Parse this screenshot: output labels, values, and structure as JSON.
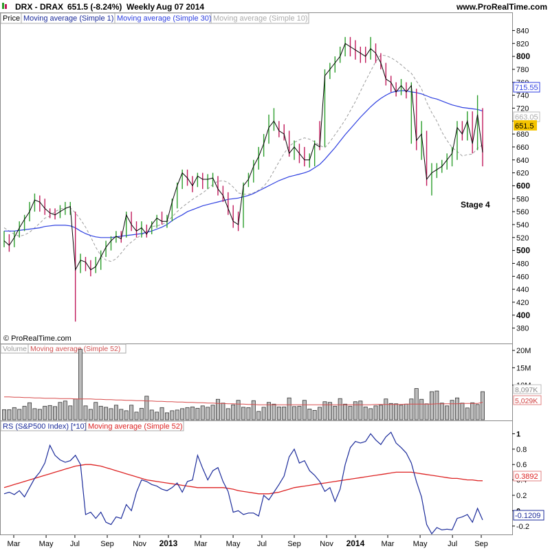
{
  "header": {
    "symbol": "DRX - DRAX",
    "price_change": "651.5 (-8.24%)",
    "period": "Weekly",
    "date": "Aug 07 2014",
    "site": "www.ProRealTime.com"
  },
  "price_panel": {
    "legend": {
      "price": "Price",
      "ma1": "Moving average (Simple 1)",
      "ma30": "Moving average (Simple 30)",
      "ma10": "Moving average (Simple 10)"
    },
    "copyright": "© ProRealTime.com",
    "annotation": "Stage 4",
    "value_tags": {
      "ma30": "715.55",
      "ma10": "663.05",
      "last": "651.5"
    },
    "colors": {
      "up": "#2a9d2a",
      "down": "#c0185a",
      "ma1": "#000000",
      "ma30": "#2c3ee0",
      "ma10": "#9a9a9a",
      "last_tag": "#f5c400"
    }
  },
  "volume_panel": {
    "legend": {
      "volume": "Volume",
      "ma": "Moving average (Simple 52)"
    },
    "ticks": [
      "20M",
      "15M",
      "10M"
    ],
    "value_tags": {
      "volume": "8,097K",
      "ma": "5,029K"
    }
  },
  "rs_panel": {
    "legend": {
      "rs": "RS (S&P500 Index) [*10]",
      "ma": "Moving average (Simple 52)"
    },
    "ticks": [
      "1",
      "0.8",
      "0.6",
      "0.4",
      "0.2",
      "0",
      "-0.2"
    ],
    "value_tags": {
      "ma": "0.3892",
      "rs": "-0.1209"
    }
  },
  "x_axis": {
    "labels": [
      "Mar",
      "May",
      "Jul",
      "Sep",
      "Nov",
      "2013",
      "Mar",
      "May",
      "Jul",
      "Sep",
      "Nov",
      "2014",
      "Mar",
      "May",
      "Jul",
      "Sep"
    ]
  },
  "chart_data": [
    {
      "type": "ohlc",
      "title": "DRX - DRAX",
      "period": "Weekly",
      "ylim": [
        370,
        850
      ],
      "yticks": [
        380,
        400,
        420,
        440,
        460,
        480,
        500,
        520,
        540,
        560,
        580,
        600,
        620,
        640,
        660,
        680,
        700,
        720,
        740,
        760,
        780,
        800,
        820,
        840
      ],
      "close": [
        515,
        508,
        520,
        535,
        548,
        560,
        578,
        575,
        565,
        558,
        555,
        560,
        565,
        568,
        470,
        485,
        482,
        470,
        475,
        490,
        505,
        515,
        522,
        518,
        555,
        540,
        530,
        535,
        525,
        540,
        550,
        545,
        545,
        575,
        600,
        620,
        612,
        600,
        615,
        610,
        610,
        612,
        595,
        585,
        565,
        545,
        540,
        600,
        610,
        630,
        645,
        665,
        690,
        700,
        685,
        680,
        650,
        660,
        650,
        640,
        640,
        665,
        660,
        770,
        780,
        790,
        800,
        820,
        815,
        810,
        805,
        800,
        812,
        805,
        790,
        765,
        760,
        745,
        755,
        745,
        755,
        670,
        680,
        610,
        620,
        625,
        630,
        640,
        650,
        690,
        680,
        700,
        665,
        710,
        651.5
      ],
      "high": [
        530,
        525,
        530,
        545,
        555,
        575,
        588,
        585,
        580,
        565,
        565,
        570,
        575,
        575,
        560,
        495,
        490,
        485,
        490,
        500,
        515,
        522,
        530,
        530,
        560,
        560,
        545,
        545,
        540,
        545,
        555,
        560,
        555,
        580,
        605,
        625,
        625,
        615,
        620,
        620,
        618,
        620,
        615,
        600,
        590,
        570,
        560,
        605,
        620,
        640,
        660,
        680,
        710,
        720,
        700,
        695,
        685,
        670,
        665,
        660,
        650,
        670,
        700,
        780,
        790,
        800,
        815,
        830,
        830,
        825,
        815,
        815,
        830,
        820,
        805,
        790,
        770,
        760,
        765,
        760,
        760,
        750,
        700,
        685,
        635,
        635,
        640,
        650,
        660,
        700,
        700,
        715,
        715,
        740,
        720
      ],
      "low": [
        505,
        498,
        505,
        520,
        530,
        545,
        560,
        560,
        555,
        550,
        548,
        550,
        555,
        555,
        390,
        465,
        468,
        460,
        465,
        470,
        490,
        500,
        512,
        512,
        520,
        530,
        520,
        520,
        520,
        525,
        535,
        540,
        535,
        545,
        565,
        595,
        600,
        590,
        598,
        595,
        595,
        598,
        585,
        575,
        555,
        535,
        530,
        535,
        598,
        605,
        625,
        645,
        665,
        685,
        675,
        670,
        645,
        640,
        635,
        630,
        628,
        630,
        655,
        660,
        765,
        775,
        790,
        800,
        800,
        795,
        790,
        790,
        795,
        790,
        780,
        755,
        745,
        738,
        740,
        735,
        665,
        655,
        640,
        600,
        585,
        612,
        620,
        625,
        630,
        640,
        670,
        670,
        650,
        655,
        630
      ],
      "ma10": [
        535,
        530,
        525,
        522,
        524,
        528,
        535,
        542,
        550,
        553,
        560,
        564,
        566,
        566,
        558,
        548,
        536,
        521,
        505,
        492,
        485,
        483,
        487,
        496,
        506,
        513,
        519,
        524,
        530,
        537,
        538,
        540,
        544,
        552,
        560,
        567,
        573,
        579,
        584,
        589,
        595,
        602,
        607,
        608,
        605,
        598,
        589,
        587,
        587,
        589,
        593,
        599,
        609,
        623,
        637,
        650,
        661,
        667,
        671,
        674,
        672,
        668,
        662,
        659,
        668,
        679,
        690,
        702,
        716,
        730,
        746,
        762,
        777,
        792,
        802,
        801,
        798,
        793,
        787,
        780,
        774,
        762,
        750,
        729,
        713,
        700,
        683,
        670,
        659,
        653,
        646,
        648,
        649,
        658,
        663.05
      ],
      "ma30": [
        530,
        530,
        530,
        531,
        532,
        533,
        534,
        535,
        537,
        538,
        539,
        539,
        539,
        538,
        535,
        530,
        526,
        523,
        521,
        520,
        520,
        520,
        521,
        522,
        523,
        524,
        525,
        526,
        528,
        530,
        533,
        536,
        540,
        546,
        551,
        555,
        560,
        563,
        566,
        569,
        571,
        573,
        575,
        577,
        579,
        580,
        581,
        583,
        585,
        588,
        592,
        596,
        600,
        604,
        608,
        611,
        614,
        616,
        618,
        620,
        623,
        628,
        633,
        641,
        650,
        659,
        669,
        679,
        688,
        697,
        706,
        714,
        722,
        729,
        735,
        740,
        744,
        746,
        747,
        747,
        745,
        744,
        742,
        739,
        736,
        734,
        731,
        728,
        725,
        723,
        721,
        720,
        719,
        718,
        715.55
      ]
    },
    {
      "type": "bar",
      "title": "Volume",
      "unit": "M",
      "ylim": [
        0,
        22
      ],
      "values": [
        2.9,
        2.9,
        3.5,
        3.0,
        3.9,
        4.9,
        3.2,
        3.0,
        3.9,
        4.1,
        3.8,
        5.0,
        5.4,
        4.0,
        6.0,
        20.3,
        4.0,
        3.0,
        5.0,
        3.9,
        3.6,
        3.2,
        4.2,
        3.0,
        2.6,
        4.2,
        2.2,
        3.3,
        6.8,
        2.8,
        2.2,
        3.5,
        2.0,
        2.6,
        2.8,
        3.2,
        3.5,
        3.7,
        3.3,
        4.0,
        3.6,
        4.2,
        5.9,
        4.8,
        3.2,
        4.3,
        5.6,
        3.6,
        3.5,
        5.5,
        2.4,
        3.6,
        5.0,
        4.5,
        3.7,
        3.7,
        6.3,
        3.8,
        3.9,
        5.6,
        3.1,
        2.7,
        3.6,
        5.2,
        5.0,
        3.9,
        6.1,
        4.5,
        3.9,
        5.2,
        5.4,
        3.7,
        3.2,
        4.0,
        4.2,
        6.0,
        4.7,
        4.6,
        4.2,
        4.5,
        6.0,
        9.0,
        5.9,
        4.6,
        8.1,
        8.3,
        4.8,
        4.0,
        5.6,
        6.3,
        4.8,
        3.4,
        4.9,
        4.4,
        8.1
      ],
      "ma": [
        6.6,
        6.6,
        6.5,
        6.5,
        6.4,
        6.4,
        6.3,
        6.3,
        6.2,
        6.2,
        6.2,
        6.1,
        6.1,
        6.1,
        6.0,
        6.0,
        6.0,
        6.0,
        5.9,
        5.9,
        5.8,
        5.8,
        5.7,
        5.7,
        5.6,
        5.6,
        5.5,
        5.5,
        5.4,
        5.4,
        5.3,
        5.3,
        5.2,
        5.2,
        5.1,
        5.1,
        5.0,
        5.0,
        4.9,
        4.9,
        4.8,
        4.8,
        4.7,
        4.7,
        4.6,
        4.6,
        4.5,
        4.5,
        4.4,
        4.4,
        4.3,
        4.3,
        4.3,
        4.3,
        4.3,
        4.3,
        4.3,
        4.3,
        4.3,
        4.3,
        4.3,
        4.3,
        4.3,
        4.3,
        4.3,
        4.3,
        4.3,
        4.3,
        4.3,
        4.3,
        4.3,
        4.3,
        4.3,
        4.4,
        4.4,
        4.4,
        4.4,
        4.4,
        4.4,
        4.5,
        4.5,
        4.5,
        4.5,
        4.5,
        4.5,
        4.6,
        4.6,
        4.6,
        4.6,
        4.6,
        4.7,
        4.7,
        4.7,
        4.7,
        5.029
      ]
    },
    {
      "type": "line",
      "title": "RS (S&P500 Index) [*10]",
      "ylim": [
        -0.3,
        1.12
      ],
      "values": [
        0.22,
        0.24,
        0.21,
        0.26,
        0.18,
        0.3,
        0.42,
        0.5,
        0.62,
        0.85,
        0.72,
        0.66,
        0.63,
        0.65,
        0.72,
        0.6,
        -0.05,
        -0.02,
        -0.1,
        -0.02,
        -0.15,
        -0.18,
        -0.08,
        -0.1,
        0.08,
        0.0,
        0.24,
        0.4,
        0.38,
        0.34,
        0.32,
        0.28,
        0.26,
        0.3,
        0.36,
        0.24,
        0.38,
        0.4,
        0.72,
        0.55,
        0.4,
        0.52,
        0.56,
        0.38,
        0.25,
        -0.02,
        0.0,
        -0.05,
        -0.03,
        -0.03,
        -0.07,
        0.2,
        0.14,
        0.24,
        0.34,
        0.45,
        0.7,
        0.8,
        0.62,
        0.65,
        0.52,
        0.46,
        0.38,
        0.25,
        0.3,
        0.12,
        0.28,
        0.6,
        0.82,
        0.9,
        0.88,
        0.9,
        1.0,
        0.92,
        0.86,
        0.96,
        1.02,
        0.88,
        0.82,
        0.75,
        0.62,
        0.38,
        0.18,
        -0.18,
        -0.3,
        -0.22,
        -0.25,
        -0.24,
        -0.25,
        -0.1,
        -0.08,
        -0.05,
        -0.15,
        0.03,
        -0.1209
      ],
      "ma": [
        0.3,
        0.32,
        0.34,
        0.36,
        0.38,
        0.4,
        0.42,
        0.44,
        0.46,
        0.48,
        0.5,
        0.52,
        0.54,
        0.56,
        0.58,
        0.59,
        0.6,
        0.6,
        0.59,
        0.58,
        0.56,
        0.54,
        0.52,
        0.5,
        0.48,
        0.46,
        0.44,
        0.42,
        0.4,
        0.39,
        0.38,
        0.37,
        0.36,
        0.35,
        0.34,
        0.33,
        0.32,
        0.31,
        0.3,
        0.3,
        0.3,
        0.3,
        0.3,
        0.3,
        0.29,
        0.28,
        0.26,
        0.25,
        0.24,
        0.23,
        0.22,
        0.22,
        0.22,
        0.23,
        0.24,
        0.26,
        0.28,
        0.3,
        0.31,
        0.32,
        0.33,
        0.34,
        0.35,
        0.36,
        0.37,
        0.38,
        0.39,
        0.4,
        0.41,
        0.42,
        0.43,
        0.44,
        0.45,
        0.46,
        0.47,
        0.48,
        0.49,
        0.5,
        0.5,
        0.5,
        0.5,
        0.49,
        0.48,
        0.47,
        0.46,
        0.45,
        0.44,
        0.43,
        0.42,
        0.42,
        0.41,
        0.4,
        0.4,
        0.39,
        0.3892
      ]
    }
  ]
}
